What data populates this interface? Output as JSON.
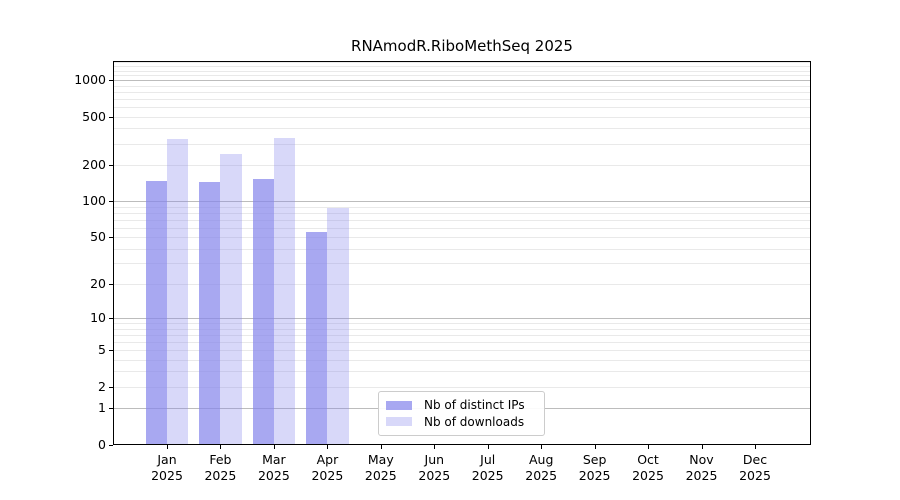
{
  "chart_data": {
    "type": "bar",
    "title": "RNAmodR.RiboMethSeq 2025",
    "categories": [
      "Jan 2025",
      "Feb 2025",
      "Mar 2025",
      "Apr 2025",
      "May 2025",
      "Jun 2025",
      "Jul 2025",
      "Aug 2025",
      "Sep 2025",
      "Oct 2025",
      "Nov 2025",
      "Dec 2025"
    ],
    "series": [
      {
        "name": "Nb of distinct IPs",
        "values": [
          148,
          145,
          153,
          55,
          null,
          null,
          null,
          null,
          null,
          null,
          null,
          null
        ],
        "color": "rgba(134,134,236,0.72)",
        "swatch_hex": "#a9a9f1"
      },
      {
        "name": "Nb of downloads",
        "values": [
          330,
          246,
          333,
          87,
          null,
          null,
          null,
          null,
          null,
          null,
          null,
          null
        ],
        "color": "rgba(134,134,236,0.32)",
        "swatch_hex": "#d9d9f9"
      }
    ],
    "xlabel": "",
    "ylabel": "",
    "y_scale": "log1p",
    "y_ticks": [
      1000,
      500,
      200,
      100,
      50,
      20,
      10,
      5,
      2,
      1,
      0
    ],
    "ylim": [
      0,
      1438
    ],
    "grid": "horizontal",
    "legend": {
      "position": "bottom-center",
      "labels": [
        "Nb of distinct IPs",
        "Nb of downloads"
      ]
    },
    "colors": {
      "grid_major": "#bcbcbc",
      "grid_minor": "#e9e9e9",
      "axis_frame": "#000000",
      "legend_border": "#cccccc",
      "background": "#ffffff"
    }
  }
}
